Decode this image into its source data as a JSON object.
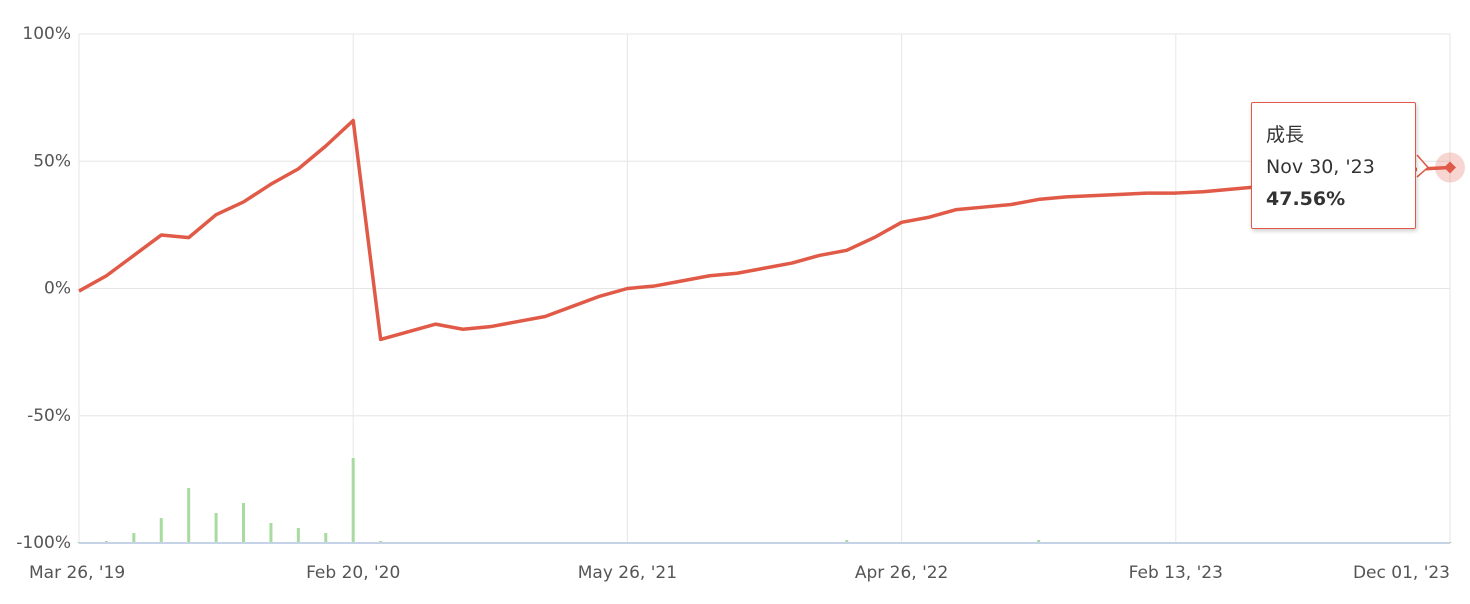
{
  "chart_data": {
    "type": "line",
    "categories": [
      "Mar 26, '19",
      null,
      null,
      null,
      null,
      null,
      null,
      null,
      null,
      null,
      "Feb 20, '20",
      null,
      null,
      null,
      null,
      null,
      null,
      null,
      null,
      null,
      "May 26, '21",
      null,
      null,
      null,
      null,
      null,
      null,
      null,
      null,
      null,
      "Apr 26, '22",
      null,
      null,
      null,
      null,
      null,
      null,
      null,
      null,
      null,
      "Feb 13, '23",
      null,
      null,
      null,
      null,
      null,
      null,
      null,
      null,
      null,
      "Dec 01, '23"
    ],
    "series": [
      {
        "name": "成長",
        "color": "#e05a47",
        "values": [
          -1,
          5,
          13,
          21,
          20,
          29,
          34,
          41,
          47,
          56,
          66,
          -20,
          -17,
          -14,
          -16,
          -15,
          -13,
          -11,
          -7,
          -3,
          0,
          1,
          3,
          5,
          6,
          8,
          10,
          13,
          15,
          20,
          26,
          28,
          31,
          32,
          33,
          35,
          36,
          36.5,
          37,
          37.5,
          37.5,
          38,
          39,
          40,
          41,
          42,
          43.5,
          45,
          46,
          47,
          47.56
        ]
      }
    ],
    "bars": {
      "color": "#a8dba0",
      "values": [
        1,
        2,
        10,
        25,
        55,
        30,
        40,
        20,
        15,
        10,
        85,
        2,
        1,
        1,
        1,
        1,
        1,
        1,
        1,
        1,
        1,
        1,
        1,
        1,
        1,
        1,
        1,
        1,
        3,
        1,
        1,
        1,
        1,
        1,
        1,
        3,
        1,
        1,
        1,
        1,
        1,
        1,
        1,
        1,
        1,
        1,
        1,
        1,
        1,
        1,
        1
      ],
      "ylim": [
        0,
        100
      ]
    },
    "ylim": [
      -100,
      100
    ],
    "yticks": [
      {
        "value": 100,
        "label": "100%"
      },
      {
        "value": 50,
        "label": "50%"
      },
      {
        "value": 0,
        "label": "0%"
      },
      {
        "value": -50,
        "label": "-50%"
      },
      {
        "value": -100,
        "label": "-100%"
      }
    ],
    "grid": true,
    "tooltip": {
      "x_label": "Nov 30, '23",
      "value_label": "47.56%"
    }
  }
}
